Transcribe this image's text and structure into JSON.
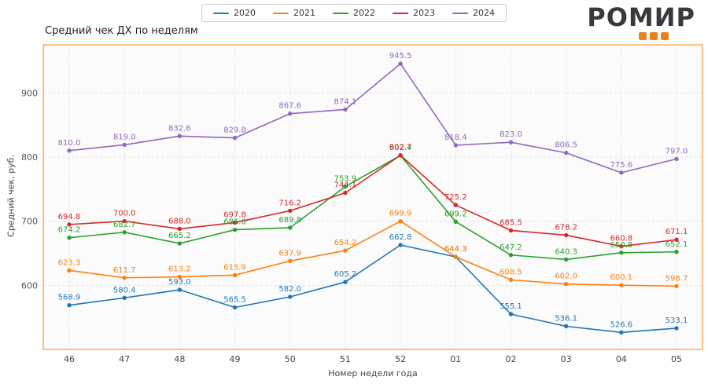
{
  "logo": {
    "text": "РОМИР",
    "accent_color": "#ef7f1a"
  },
  "chart_data": {
    "type": "line",
    "title": "Средний чек ДХ по неделям",
    "xlabel": "Номер недели года",
    "ylabel": "Средний чек, руб.",
    "categories": [
      "46",
      "47",
      "48",
      "49",
      "50",
      "51",
      "52",
      "01",
      "02",
      "03",
      "04",
      "05"
    ],
    "yticks": [
      600,
      700,
      800,
      900
    ],
    "ylim": [
      500,
      975
    ],
    "grid": true,
    "legend_position": "top-center",
    "frame_color": "#ff7f0e",
    "series": [
      {
        "name": "2020",
        "color": "#1f77b4",
        "values": [
          568.9,
          580.4,
          593.0,
          565.5,
          582.0,
          605.2,
          662.8,
          644.3,
          555.1,
          536.1,
          526.6,
          533.1
        ]
      },
      {
        "name": "2021",
        "color": "#ff7f0e",
        "values": [
          623.3,
          611.7,
          613.2,
          615.9,
          637.9,
          654.2,
          699.9,
          644.3,
          608.5,
          602.0,
          600.1,
          598.7
        ]
      },
      {
        "name": "2022",
        "color": "#2ca02c",
        "values": [
          674.2,
          682.7,
          665.2,
          686.6,
          689.8,
          753.9,
          802.4,
          699.2,
          647.2,
          640.3,
          650.8,
          652.1
        ]
      },
      {
        "name": "2023",
        "color": "#d62728",
        "values": [
          694.8,
          700.0,
          688.0,
          697.8,
          716.2,
          744.1,
          802.7,
          725.2,
          685.5,
          678.2,
          660.8,
          671.1
        ]
      },
      {
        "name": "2024",
        "color": "#9467bd",
        "values": [
          810.0,
          819.0,
          832.6,
          829.8,
          867.6,
          874.1,
          945.5,
          818.4,
          823.0,
          806.5,
          775.6,
          797.0
        ]
      }
    ]
  }
}
